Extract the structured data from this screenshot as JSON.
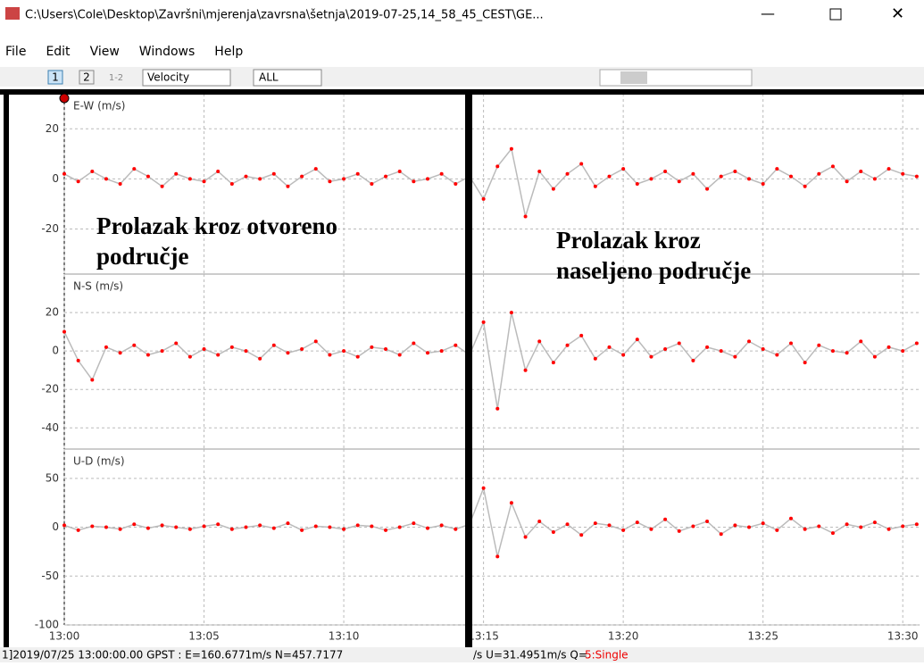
{
  "window": {
    "title": "C:\\Users\\Cole\\Desktop\\Završni\\mjerenja\\zavrsna\\šetnja\\2019-07-25,14_58_45_CEST\\GE...",
    "menu": [
      "File",
      "Edit",
      "View",
      "Windows",
      "Help"
    ],
    "toolbar": {
      "b1": "1",
      "b2": "2",
      "b12": "1-2",
      "mode": "Velocity",
      "sel": "ALL"
    }
  },
  "plots": {
    "xlim": [
      0,
      30.6
    ],
    "xticks": [
      {
        "value": 0,
        "label": "13:00"
      },
      {
        "value": 5,
        "label": "13:05"
      },
      {
        "value": 10,
        "label": "13:10"
      },
      {
        "value": 15,
        "label": "13:15"
      },
      {
        "value": 20,
        "label": "13:20"
      },
      {
        "value": 25,
        "label": "13:25"
      },
      {
        "value": 30,
        "label": "13:30"
      }
    ],
    "x": [
      0,
      0.5,
      1,
      1.5,
      2,
      2.5,
      3,
      3.5,
      4,
      4.5,
      5,
      5.5,
      6,
      6.5,
      7,
      7.5,
      8,
      8.5,
      9,
      9.5,
      10,
      10.5,
      11,
      11.5,
      12,
      12.5,
      13,
      13.5,
      14,
      14.5,
      15,
      15.5,
      16,
      16.5,
      17,
      17.5,
      18,
      18.5,
      19,
      19.5,
      20,
      20.5,
      21,
      21.5,
      22,
      22.5,
      23,
      23.5,
      24,
      24.5,
      25,
      25.5,
      26,
      26.5,
      27,
      27.5,
      28,
      28.5,
      29,
      29.5,
      30,
      30.5
    ],
    "panels": [
      {
        "label": "E-W (m/s)",
        "ylim": [
          -38,
          34
        ],
        "yticks": [
          20,
          0,
          -20
        ],
        "values": [
          2,
          -1,
          3,
          0,
          -2,
          4,
          1,
          -3,
          2,
          0,
          -1,
          3,
          -2,
          1,
          0,
          2,
          -3,
          1,
          4,
          -1,
          0,
          2,
          -2,
          1,
          3,
          -1,
          0,
          2,
          -2,
          1,
          -8,
          5,
          12,
          -15,
          3,
          -4,
          2,
          6,
          -3,
          1,
          4,
          -2,
          0,
          3,
          -1,
          2,
          -4,
          1,
          3,
          0,
          -2,
          4,
          1,
          -3,
          2,
          5,
          -1,
          3,
          0,
          4,
          2,
          1
        ]
      },
      {
        "label": "N-S (m/s)",
        "ylim": [
          -51,
          40
        ],
        "yticks": [
          20,
          0,
          -20,
          -40
        ],
        "values": [
          10,
          -5,
          -15,
          2,
          -1,
          3,
          -2,
          0,
          4,
          -3,
          1,
          -2,
          2,
          0,
          -4,
          3,
          -1,
          1,
          5,
          -2,
          0,
          -3,
          2,
          1,
          -2,
          4,
          -1,
          0,
          3,
          -2,
          15,
          -30,
          20,
          -10,
          5,
          -6,
          3,
          8,
          -4,
          2,
          -2,
          6,
          -3,
          1,
          4,
          -5,
          2,
          0,
          -3,
          5,
          1,
          -2,
          4,
          -6,
          3,
          0,
          -1,
          5,
          -3,
          2,
          0,
          4
        ]
      },
      {
        "label": "U-D (m/s)",
        "ylim": [
          -100,
          80
        ],
        "yticks": [
          50,
          0,
          -50,
          -100
        ],
        "values": [
          2,
          -3,
          1,
          0,
          -2,
          3,
          -1,
          2,
          0,
          -2,
          1,
          3,
          -2,
          0,
          2,
          -1,
          4,
          -3,
          1,
          0,
          -2,
          2,
          1,
          -3,
          0,
          4,
          -1,
          2,
          -2,
          3,
          40,
          -30,
          25,
          -10,
          6,
          -5,
          3,
          -8,
          4,
          2,
          -3,
          5,
          -2,
          8,
          -4,
          1,
          6,
          -7,
          2,
          0,
          4,
          -3,
          9,
          -2,
          1,
          -6,
          3,
          0,
          5,
          -2,
          1,
          3
        ]
      }
    ]
  },
  "annotations": {
    "left": [
      "Prolazak kroz otvoreno",
      "područje"
    ],
    "right": [
      "Prolazak kroz",
      "naseljeno područje"
    ]
  },
  "status": {
    "text": "1]2019/07/25 13:00:00.00 GPST : E=160.6771m/s N=457.7177",
    "text2": "/s U=31.4951m/s Q= ",
    "quality": "5:Single"
  }
}
